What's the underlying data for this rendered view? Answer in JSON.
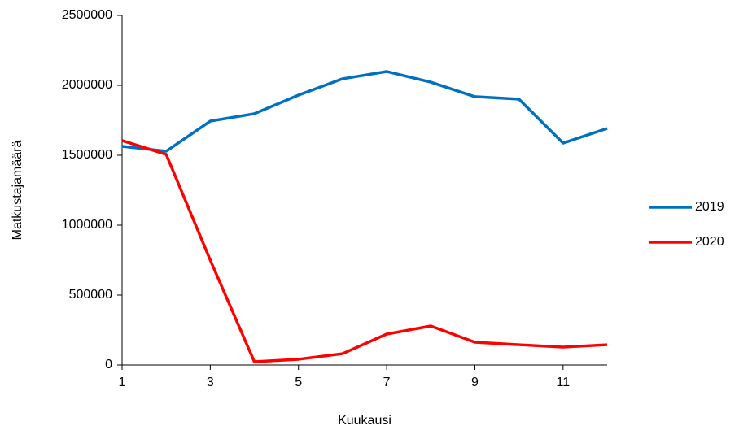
{
  "chart_data": {
    "type": "line",
    "x_label": "Kuukausi",
    "y_label": "Matkustajamäärä",
    "x": [
      1,
      2,
      3,
      4,
      5,
      6,
      7,
      8,
      9,
      10,
      11,
      12
    ],
    "series": [
      {
        "name": "2019",
        "color": "#0070c0",
        "values": [
          1564000,
          1529000,
          1744000,
          1797000,
          1930000,
          2047000,
          2099000,
          2023000,
          1919000,
          1901000,
          1587000,
          1692000
        ]
      },
      {
        "name": "2020",
        "color": "#ff0000",
        "values": [
          1605000,
          1506000,
          750000,
          23000,
          41000,
          81000,
          221000,
          279000,
          163000,
          145000,
          128000,
          145000
        ]
      }
    ],
    "xlim": [
      1,
      12
    ],
    "xticks": [
      1,
      3,
      5,
      7,
      9,
      11
    ],
    "ylim": [
      0,
      2500000
    ],
    "yticks": [
      0,
      500000,
      1000000,
      1500000,
      2000000,
      2500000
    ],
    "grid": false,
    "legend": "right"
  }
}
